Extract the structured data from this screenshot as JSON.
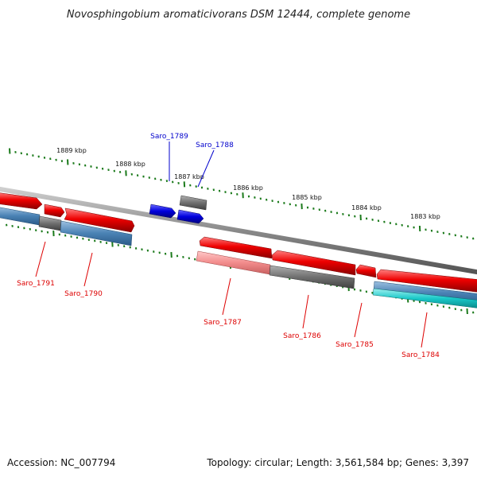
{
  "title": "Novosphingobium aromaticivorans DSM 12444, complete genome",
  "footer": {
    "accession": "Accession: NC_007794",
    "summary": "Topology: circular; Length: 3,561,584 bp; Genes: 3,397"
  },
  "colors": {
    "backbone": "#8a8a8a",
    "tick": "#1b7a1b",
    "gene_red": "#ee0000",
    "gene_pink": "#f28c8c",
    "gene_gray": "#707070",
    "gene_blue": "#0000dd",
    "gene_steel": "#4a82b4",
    "gene_cyan": "#19c8c8",
    "label_red": "#dd0000",
    "label_blue": "#0000cc"
  },
  "scale": {
    "unit": "kbp",
    "labels": [
      "1889 kbp",
      "1888 kbp",
      "1887 kbp",
      "1886 kbp",
      "1885 kbp",
      "1884 kbp",
      "1883 kbp"
    ]
  },
  "genes": [
    {
      "name": "Saro_1789",
      "strand": "forward"
    },
    {
      "name": "Saro_1788",
      "strand": "forward"
    },
    {
      "name": "Saro_1791",
      "strand": "reverse"
    },
    {
      "name": "Saro_1790",
      "strand": "reverse"
    },
    {
      "name": "Saro_1787",
      "strand": "reverse"
    },
    {
      "name": "Saro_1786",
      "strand": "reverse"
    },
    {
      "name": "Saro_1785",
      "strand": "reverse"
    },
    {
      "name": "Saro_1784",
      "strand": "reverse"
    }
  ]
}
